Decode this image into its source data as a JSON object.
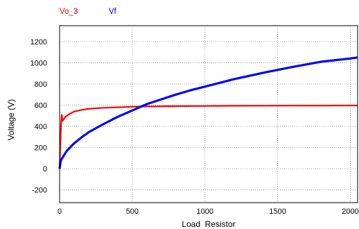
{
  "chart_data": {
    "type": "line",
    "title": "",
    "xlabel": "Load  Resistor",
    "ylabel": "Voltage (V)",
    "xlim": [
      0,
      2050
    ],
    "ylim": [
      -320,
      1350
    ],
    "xticks": [
      0,
      500,
      1000,
      1500,
      2000
    ],
    "yticks": [
      -200,
      0,
      200,
      400,
      600,
      800,
      1000,
      1200
    ],
    "grid": true,
    "legend": "top-left",
    "series": [
      {
        "name": "Vo_3",
        "color": "#ff0000",
        "x": [
          0,
          5,
          10,
          15,
          20,
          30,
          40,
          50,
          60,
          80,
          100,
          150,
          200,
          300,
          400,
          500,
          600,
          800,
          1000,
          1200,
          1400,
          1600,
          1800,
          2000,
          2050
        ],
        "y": [
          0,
          220,
          420,
          510,
          450,
          470,
          490,
          500,
          510,
          525,
          540,
          555,
          565,
          575,
          580,
          585,
          588,
          590,
          592,
          594,
          595,
          596,
          596,
          597,
          597
        ]
      },
      {
        "name": "Vf",
        "color": "#0000ff",
        "x": [
          0,
          5,
          10,
          20,
          50,
          100,
          150,
          200,
          300,
          400,
          500,
          600,
          700,
          800,
          900,
          1000,
          1200,
          1400,
          1600,
          1800,
          2000,
          2050
        ],
        "y": [
          0,
          50,
          80,
          105,
          170,
          240,
          295,
          345,
          420,
          490,
          550,
          610,
          655,
          700,
          740,
          775,
          845,
          905,
          960,
          1010,
          1040,
          1050
        ]
      }
    ]
  }
}
